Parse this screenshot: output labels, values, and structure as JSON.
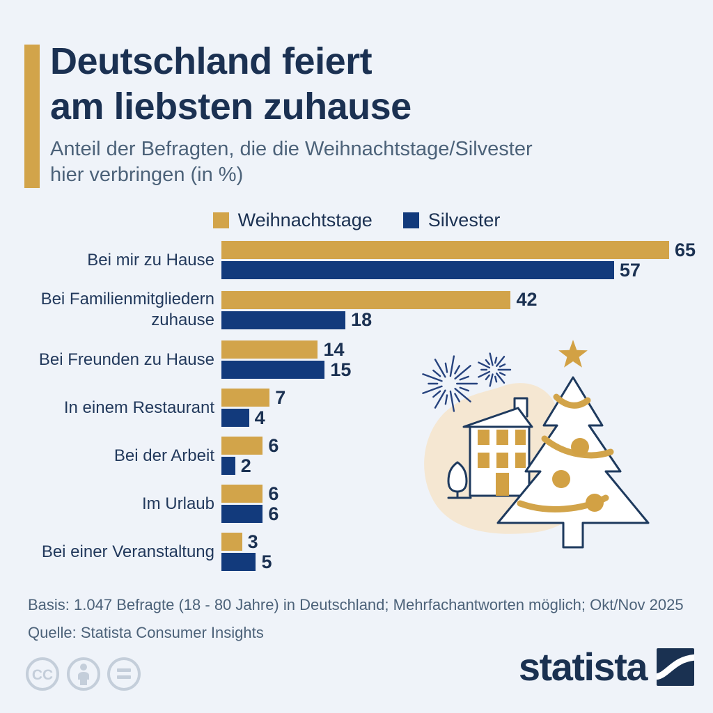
{
  "header": {
    "title_line1": "Deutschland feiert",
    "title_line2": "am liebsten zuhause",
    "subtitle_line1": "Anteil der Befragten, die die Weihnachtstage/Silvester",
    "subtitle_line2": "hier verbringen (in %)"
  },
  "legend": {
    "items": [
      {
        "label": "Weihnachtstage",
        "color": "#D2A44A"
      },
      {
        "label": "Silvester",
        "color": "#123A7C"
      }
    ]
  },
  "chart_data": {
    "type": "bar",
    "orientation": "horizontal",
    "title": "Deutschland feiert am liebsten zuhause",
    "subtitle": "Anteil der Befragten, die die Weihnachtstage/Silvester hier verbringen (in %)",
    "unit": "%",
    "categories": [
      "Bei mir zu Hause",
      "Bei Familienmitgliedern zuhause",
      "Bei Freunden zu Hause",
      "In einem Restaurant",
      "Bei der Arbeit",
      "Im Urlaub",
      "Bei einer Veranstaltung"
    ],
    "series": [
      {
        "name": "Weihnachtstage",
        "color": "#D2A44A",
        "values": [
          65,
          42,
          14,
          7,
          6,
          6,
          3
        ]
      },
      {
        "name": "Silvester",
        "color": "#123A7C",
        "values": [
          57,
          18,
          15,
          4,
          2,
          6,
          5
        ]
      }
    ],
    "xlim": [
      0,
      65
    ],
    "value_labels": true,
    "legend_position": "top",
    "grid": false
  },
  "footnote": {
    "basis": "Basis: 1.047 Befragte (18 - 80 Jahre) in Deutschland; Mehrfachantworten möglich; Okt/Nov 2025",
    "source": "Quelle: Statista Consumer Insights"
  },
  "branding": {
    "logo_text": "statista",
    "license_icons": [
      "cc-icon",
      "attribution-person-icon",
      "equals-icon"
    ]
  },
  "colors": {
    "background": "#EFF3F9",
    "gold": "#D2A44A",
    "navy_bar": "#123A7C",
    "title_text": "#1B3152",
    "muted_text": "#4C6279",
    "beige_blob": "#F5E7D2",
    "outline_navy": "#1E3A5E",
    "icon_gray": "#C4CEDA"
  }
}
